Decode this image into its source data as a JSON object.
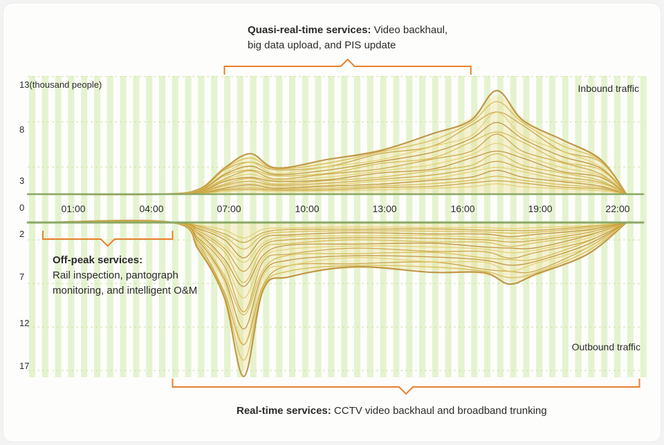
{
  "chart_data": {
    "type": "line",
    "x_ticks": [
      "01:00",
      "04:00",
      "07:00",
      "10:00",
      "13:00",
      "16:00",
      "19:00",
      "22:00"
    ],
    "inbound": {
      "label": "Inbound traffic",
      "y_ticks": [
        "13(thousand people)",
        "8",
        "3",
        "0"
      ],
      "y_tick_values": [
        13,
        8,
        3,
        0
      ],
      "ylim": [
        0,
        13
      ],
      "peak_series": {
        "x": [
          "00:00",
          "04:30",
          "06:00",
          "07:00",
          "08:00",
          "09:00",
          "11:00",
          "13:00",
          "15:00",
          "16:30",
          "17:30",
          "18:30",
          "20:00",
          "21:30",
          "22:30"
        ],
        "y": [
          0,
          0,
          0.5,
          3.0,
          4.3,
          3.0,
          3.7,
          5.0,
          6.4,
          8.5,
          11.0,
          8.5,
          5.8,
          4.0,
          0
        ]
      }
    },
    "outbound": {
      "label": "Outbound traffic",
      "y_ticks": [
        "2",
        "7",
        "12",
        "17"
      ],
      "y_tick_values": [
        2,
        7,
        12,
        17
      ],
      "ylim": [
        0,
        17
      ],
      "peak_series": {
        "x": [
          "00:00",
          "05:00",
          "06:00",
          "07:00",
          "07:45",
          "08:30",
          "09:30",
          "12:00",
          "15:00",
          "17:00",
          "18:00",
          "19:00",
          "21:00",
          "22:30"
        ],
        "y": [
          0,
          0,
          3.0,
          9.0,
          17.0,
          8.0,
          6.0,
          5.3,
          5.5,
          6.0,
          6.8,
          6.2,
          3.5,
          0
        ]
      }
    },
    "annotations": {
      "quasi_title": "Quasi-real-time services:",
      "quasi_text1": " Video backhaul,",
      "quasi_text2": "big data upload, and PIS update",
      "quasi_range": [
        "07:00",
        "16:30"
      ],
      "offpeak_title": "Off-peak services:",
      "offpeak_text1": "Rail inspection, pantograph",
      "offpeak_text2": "monitoring, and intelligent O&M",
      "offpeak_range": [
        "00:00",
        "05:00"
      ],
      "realtime_title": "Real-time services:",
      "realtime_text": " CCTV video backhaul and broadband trunking",
      "realtime_range": [
        "05:00",
        "23:00"
      ]
    },
    "colors": {
      "stripe": "#dcefc2",
      "line": "#c9a53a",
      "fill": "#e9d98a",
      "bracket": "#e8802c"
    }
  }
}
